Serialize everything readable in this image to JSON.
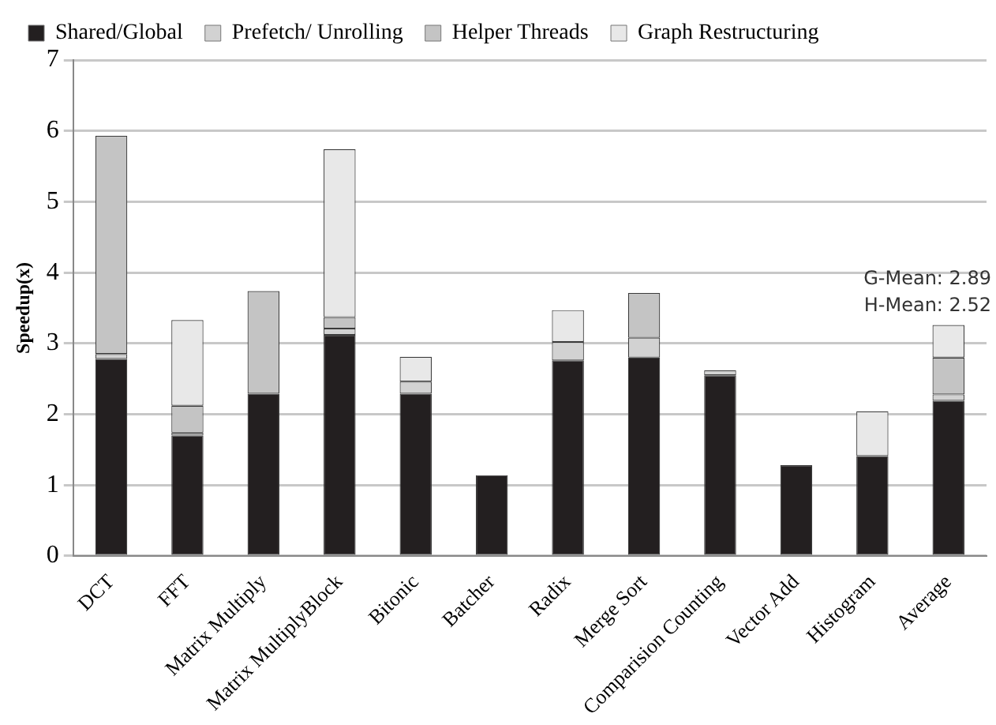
{
  "chart_data": {
    "type": "bar",
    "stacked": true,
    "ylabel": "Speedup(x)",
    "categories": [
      "DCT",
      "FFT",
      "Matrix Multiply",
      "Matrix MultiplyBlock",
      "Bitonic",
      "Batcher",
      "Radix",
      "Merge Sort",
      "Comparision Counting",
      "Vector Add",
      "Histogram",
      "Average"
    ],
    "series": [
      {
        "name": "Shared/Global",
        "color": "#231f20",
        "values": [
          2.78,
          1.7,
          2.29,
          3.12,
          2.29,
          1.14,
          2.76,
          2.8,
          2.55,
          1.28,
          1.41,
          2.19
        ]
      },
      {
        "name": "Prefetch/ Unrolling",
        "color": "#d2d2d2",
        "values": [
          0.07,
          0.04,
          0,
          0.09,
          0.17,
          0,
          0.26,
          0.28,
          0.07,
          0,
          0,
          0.09
        ]
      },
      {
        "name": "Helper Threads",
        "color": "#c4c4c4",
        "values": [
          3.08,
          0.38,
          1.45,
          0.16,
          0,
          0,
          0,
          0.63,
          0,
          0,
          0,
          0.52
        ]
      },
      {
        "name": "Graph Restructuring",
        "color": "#e8e8e8",
        "values": [
          0,
          1.21,
          0,
          2.37,
          0.35,
          0,
          0.45,
          0,
          0,
          0,
          0.63,
          0.46
        ]
      }
    ],
    "ylim": [
      0,
      7
    ],
    "yticks": [
      0,
      1,
      2,
      3,
      4,
      5,
      6,
      7
    ],
    "grid": "y",
    "legend": "top",
    "annotations": [
      "G-Mean: 2.89",
      "H-Mean: 2.52"
    ]
  }
}
